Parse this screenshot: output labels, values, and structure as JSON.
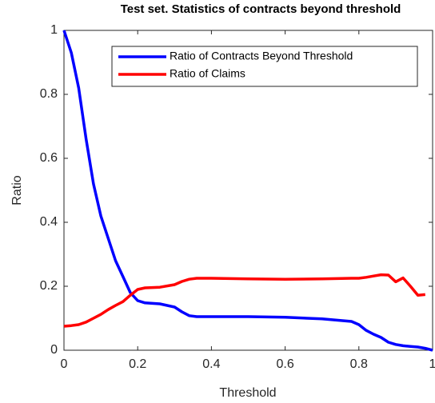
{
  "chart_data": {
    "type": "line",
    "title": "Test set. Statistics of contracts beyond threshold",
    "x_label": "Threshold",
    "y_label": "Ratio",
    "x": [
      0,
      0.02,
      0.04,
      0.06,
      0.08,
      0.1,
      0.12,
      0.14,
      0.16,
      0.18,
      0.2,
      0.22,
      0.26,
      0.3,
      0.32,
      0.34,
      0.36,
      0.4,
      0.5,
      0.6,
      0.7,
      0.78,
      0.8,
      0.82,
      0.84,
      0.86,
      0.88,
      0.9,
      0.92,
      0.94,
      0.96,
      0.98,
      1.0
    ],
    "series": [
      {
        "name": "Ratio of Contracts Beyond Threshold",
        "color": "#0000ff",
        "values": [
          1,
          0.93,
          0.82,
          0.66,
          0.52,
          0.42,
          0.35,
          0.28,
          0.23,
          0.18,
          0.155,
          0.148,
          0.145,
          0.135,
          0.12,
          0.108,
          0.105,
          0.105,
          0.105,
          0.103,
          0.098,
          0.09,
          0.08,
          0.062,
          0.05,
          0.04,
          0.025,
          0.018,
          0.014,
          0.012,
          0.01,
          0.006,
          0
        ]
      },
      {
        "name": "Ratio of Claims",
        "color": "#ff0000",
        "values": [
          0.075,
          0.077,
          0.08,
          0.088,
          0.1,
          0.112,
          0.127,
          0.14,
          0.152,
          0.172,
          0.19,
          0.195,
          0.197,
          0.205,
          0.215,
          0.222,
          0.225,
          0.225,
          0.223,
          0.222,
          0.223,
          0.225,
          0.225,
          0.228,
          0.232,
          0.236,
          0.235,
          0.214,
          0.226,
          0.2,
          0.172,
          0.174,
          null
        ]
      }
    ],
    "xlim": [
      0,
      1
    ],
    "xticks": [
      0,
      0.2,
      0.4,
      0.6,
      0.8,
      1
    ],
    "ylim": [
      0,
      1
    ],
    "yticks": [
      0,
      0.2,
      0.4,
      0.6,
      0.8,
      1
    ],
    "legend": "top-right"
  }
}
